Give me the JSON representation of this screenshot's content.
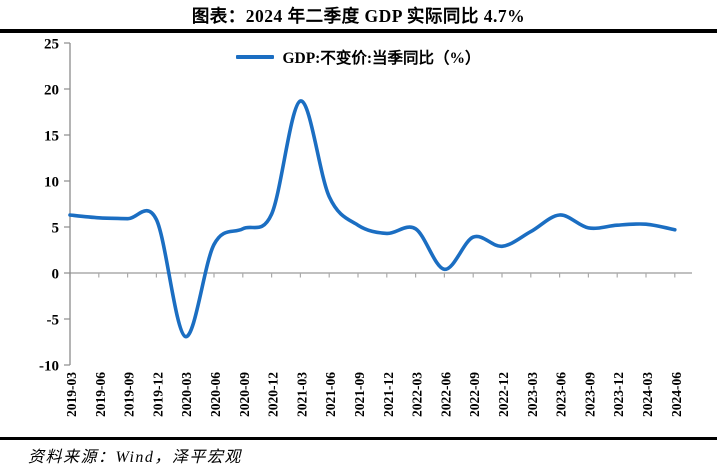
{
  "page": {
    "title": "图表：2024 年二季度 GDP 实际同比 4.7%",
    "source_note": "资料来源：Wind，泽平宏观"
  },
  "chart_data": {
    "type": "line",
    "title": "图表：2024 年二季度 GDP 实际同比 4.7%",
    "legend": [
      "GDP:不变价:当季同比（%）"
    ],
    "legend_position": "top-center-inside",
    "smoothed": true,
    "grid": false,
    "x_tick_rotation": 90,
    "ylim": [
      -10,
      25
    ],
    "yticks": [
      25,
      20,
      15,
      10,
      5,
      0,
      -5,
      -10
    ],
    "categories": [
      "2019-03",
      "2019-06",
      "2019-09",
      "2019-12",
      "2020-03",
      "2020-06",
      "2020-09",
      "2020-12",
      "2021-03",
      "2021-06",
      "2021-09",
      "2021-12",
      "2022-03",
      "2022-06",
      "2022-09",
      "2022-12",
      "2023-03",
      "2023-06",
      "2023-09",
      "2023-12",
      "2024-03",
      "2024-06"
    ],
    "series": [
      {
        "name": "GDP:不变价:当季同比（%）",
        "values": [
          6.3,
          6.0,
          5.9,
          5.8,
          -6.9,
          3.1,
          4.8,
          6.4,
          18.7,
          8.3,
          5.2,
          4.3,
          4.8,
          0.4,
          3.9,
          2.9,
          4.5,
          6.3,
          4.9,
          5.2,
          5.3,
          4.7
        ]
      }
    ],
    "colors": {
      "line": "#1B6EC2",
      "axis": "#8C8C8C",
      "zero_line": "#ABABAB",
      "tick": "#ABABAB",
      "text": "#000000"
    }
  }
}
